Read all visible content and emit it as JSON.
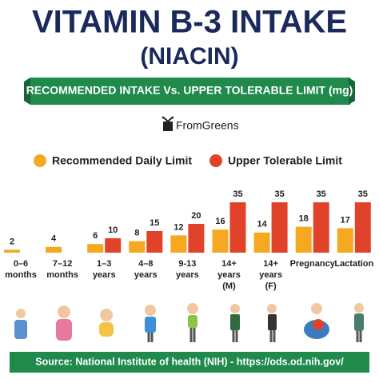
{
  "chart_data": {
    "type": "bar",
    "title": "VITAMIN B-3 INTAKE",
    "subtitle": "(NIACIN)",
    "banner": "RECOMMENDED INTAKE Vs. UPPER TOLERABLE LIMIT (mg)",
    "brand": "FromGreens",
    "source": "Source: National Institute of health (NIH) - https://ods.od.nih.gov/",
    "categories": [
      [
        "0–6",
        "months"
      ],
      [
        "7–12",
        "months"
      ],
      [
        "1–3",
        "years"
      ],
      [
        "4–8",
        "years"
      ],
      [
        "9-13",
        "years"
      ],
      [
        "14+",
        "years",
        "(M)"
      ],
      [
        "14+",
        "years",
        "(F)"
      ],
      [
        "Pregnancy"
      ],
      [
        "Lactation"
      ]
    ],
    "series": [
      {
        "name": "Recommended Daily Limit",
        "color": "#f6a821",
        "values": [
          2,
          4,
          6,
          8,
          12,
          16,
          14,
          18,
          17
        ]
      },
      {
        "name": "Upper Tolerable Limit",
        "color": "#e0432a",
        "values": [
          null,
          null,
          10,
          15,
          20,
          35,
          35,
          35,
          35
        ]
      }
    ],
    "legend": "top"
  }
}
